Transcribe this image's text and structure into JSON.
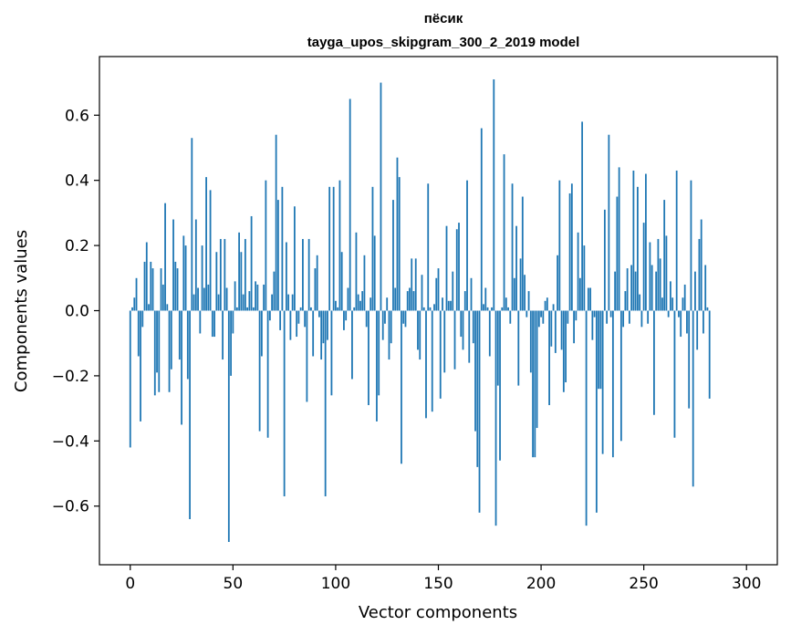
{
  "chart_data": {
    "type": "bar",
    "title": "пёсик",
    "subtitle": "tayga_upos_skipgram_300_2_2019 model",
    "xlabel": "Vector components",
    "ylabel": "Components values",
    "xlim": [
      -15,
      315
    ],
    "ylim": [
      -0.78,
      0.78
    ],
    "xticks": [
      0,
      50,
      100,
      150,
      200,
      250,
      300
    ],
    "yticks": [
      -0.6,
      -0.4,
      -0.2,
      0.0,
      0.2,
      0.4,
      0.6
    ],
    "ytick_labels": [
      "−0.6",
      "−0.4",
      "−0.2",
      "0.0",
      "0.2",
      "0.4",
      "0.6"
    ],
    "xtick_labels": [
      "0",
      "50",
      "100",
      "150",
      "200",
      "250",
      "300"
    ],
    "bar_color": "#1f77b4",
    "grid": false,
    "values": [
      -0.42,
      0.01,
      0.04,
      0.1,
      -0.14,
      -0.34,
      -0.05,
      0.15,
      0.21,
      0.02,
      0.15,
      0.13,
      -0.26,
      -0.19,
      -0.25,
      0.13,
      0.08,
      0.33,
      0.02,
      -0.25,
      -0.18,
      0.28,
      0.15,
      0.13,
      -0.15,
      -0.35,
      0.23,
      0.2,
      -0.21,
      -0.64,
      0.53,
      0.05,
      0.28,
      0.07,
      -0.07,
      0.2,
      0.07,
      0.41,
      0.08,
      0.37,
      -0.08,
      -0.08,
      0.18,
      0.05,
      0.22,
      -0.15,
      0.22,
      0.07,
      -0.71,
      -0.2,
      -0.07,
      0.09,
      0.01,
      0.24,
      0.18,
      0.05,
      0.22,
      0.01,
      0.06,
      0.29,
      0.01,
      0.09,
      0.08,
      -0.37,
      -0.14,
      0.08,
      0.4,
      -0.39,
      -0.03,
      0.05,
      0.12,
      0.54,
      0.34,
      -0.06,
      0.38,
      -0.57,
      0.21,
      0.05,
      -0.09,
      0.05,
      0.32,
      -0.08,
      -0.04,
      0.01,
      0.22,
      -0.05,
      -0.28,
      0.22,
      0.01,
      -0.14,
      0.13,
      0.17,
      -0.02,
      -0.15,
      -0.1,
      -0.57,
      -0.09,
      0.38,
      -0.26,
      0.38,
      0.03,
      0.01,
      0.4,
      0.18,
      -0.06,
      -0.03,
      0.07,
      0.65,
      -0.21,
      0.01,
      0.24,
      0.05,
      0.03,
      0.06,
      0.17,
      -0.05,
      -0.29,
      0.04,
      0.38,
      0.23,
      -0.34,
      -0.26,
      0.7,
      -0.09,
      -0.04,
      0.04,
      -0.15,
      -0.1,
      0.34,
      0.07,
      0.47,
      0.41,
      -0.47,
      -0.04,
      -0.05,
      0.06,
      0.07,
      0.16,
      0.06,
      0.16,
      -0.12,
      -0.15,
      0.11,
      0.01,
      -0.33,
      0.39,
      0.01,
      -0.31,
      0.02,
      0.1,
      0.13,
      -0.27,
      0.04,
      -0.19,
      0.26,
      0.03,
      0.03,
      0.12,
      -0.18,
      0.25,
      0.27,
      -0.08,
      -0.12,
      0.06,
      0.4,
      -0.16,
      0.1,
      -0.1,
      -0.37,
      -0.48,
      -0.62,
      0.56,
      0.02,
      0.07,
      0.01,
      -0.14,
      0.01,
      0.71,
      -0.66,
      -0.23,
      -0.46,
      0.01,
      0.48,
      0.04,
      0.01,
      -0.04,
      0.39,
      0.1,
      0.26,
      -0.23,
      0.16,
      0.35,
      0.11,
      -0.02,
      0.06,
      -0.19,
      -0.45,
      -0.45,
      -0.36,
      -0.05,
      -0.02,
      -0.04,
      0.03,
      0.04,
      -0.29,
      -0.11,
      0.02,
      -0.13,
      0.17,
      0.4,
      -0.12,
      -0.25,
      -0.22,
      -0.04,
      0.36,
      0.39,
      -0.1,
      -0.03,
      0.24,
      0.1,
      0.58,
      0.2,
      -0.66,
      0.07,
      0.07,
      -0.09,
      -0.02,
      -0.62,
      -0.24,
      -0.24,
      -0.44,
      0.31,
      -0.04,
      0.54,
      -0.02,
      -0.45,
      0.12,
      0.35,
      0.44,
      -0.4,
      -0.05,
      0.06,
      0.13,
      -0.04,
      0.14,
      0.43,
      0.12,
      0.38,
      0.05,
      -0.05,
      0.27,
      0.42,
      -0.04,
      0.21,
      0.14,
      -0.32,
      0.12,
      0.22,
      0.16,
      0.04,
      0.34,
      0.23,
      -0.02,
      0.09,
      0.04,
      -0.39,
      0.43,
      -0.02,
      -0.08,
      0.04,
      0.08,
      -0.07,
      -0.3,
      0.4,
      -0.54,
      0.12,
      -0.12,
      0.22,
      0.28,
      -0.07,
      0.14,
      0.01,
      -0.27
    ]
  }
}
